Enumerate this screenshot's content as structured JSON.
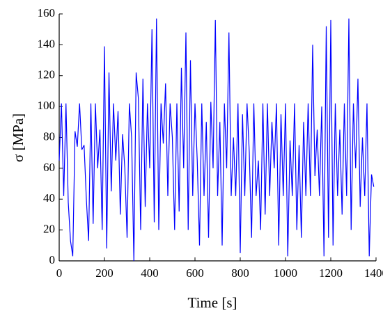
{
  "chart_data": {
    "type": "line",
    "x_label": "Time [s]",
    "y_label": "σ [MPa]",
    "x": [
      0,
      10,
      20,
      30,
      40,
      50,
      60,
      70,
      80,
      90,
      100,
      110,
      120,
      130,
      140,
      150,
      160,
      170,
      180,
      190,
      200,
      210,
      220,
      230,
      240,
      250,
      260,
      270,
      280,
      290,
      300,
      310,
      320,
      330,
      340,
      350,
      360,
      370,
      380,
      390,
      400,
      410,
      420,
      430,
      440,
      450,
      460,
      470,
      480,
      490,
      500,
      510,
      520,
      530,
      540,
      550,
      560,
      570,
      580,
      590,
      600,
      610,
      620,
      630,
      640,
      650,
      660,
      670,
      680,
      690,
      700,
      710,
      720,
      730,
      740,
      750,
      760,
      770,
      780,
      790,
      800,
      810,
      820,
      830,
      840,
      850,
      860,
      870,
      880,
      890,
      900,
      910,
      920,
      930,
      940,
      950,
      960,
      970,
      980,
      990,
      1000,
      1010,
      1020,
      1030,
      1040,
      1050,
      1060,
      1070,
      1080,
      1090,
      1100,
      1110,
      1120,
      1130,
      1140,
      1150,
      1160,
      1170,
      1180,
      1190,
      1200,
      1210,
      1220,
      1230,
      1240,
      1250,
      1260,
      1270,
      1280,
      1290,
      1300,
      1310,
      1320,
      1330,
      1340,
      1350,
      1360,
      1370,
      1380,
      1390
    ],
    "series": [
      {
        "color": "#0000ff",
        "values": [
          65,
          102,
          42,
          102,
          38,
          13,
          3,
          84,
          74,
          102,
          72,
          75,
          40,
          13,
          102,
          24,
          102,
          60,
          85,
          20,
          139,
          8,
          122,
          45,
          102,
          65,
          97,
          30,
          82,
          60,
          15,
          102,
          80,
          0,
          122,
          105,
          20,
          118,
          35,
          102,
          60,
          150,
          25,
          157,
          20,
          102,
          76,
          115,
          42,
          102,
          80,
          20,
          102,
          32,
          125,
          60,
          148,
          20,
          130,
          42,
          102,
          65,
          10,
          102,
          42,
          90,
          15,
          103,
          60,
          156,
          42,
          90,
          10,
          102,
          60,
          148,
          42,
          80,
          42,
          102,
          5,
          95,
          42,
          102,
          70,
          15,
          102,
          42,
          65,
          20,
          102,
          30,
          102,
          42,
          90,
          60,
          102,
          10,
          95,
          42,
          102,
          3,
          78,
          42,
          102,
          20,
          75,
          15,
          90,
          42,
          102,
          42,
          140,
          55,
          85,
          42,
          100,
          3,
          152,
          15,
          156,
          10,
          102,
          42,
          85,
          30,
          102,
          42,
          157,
          20,
          102,
          60,
          118,
          35,
          80,
          42,
          102,
          3,
          56,
          48
        ]
      }
    ],
    "xlim": [
      0,
      1400
    ],
    "xticks": [
      0,
      200,
      400,
      600,
      800,
      1000,
      1200,
      1400
    ],
    "ylim": [
      0,
      160
    ],
    "yticks": [
      0,
      20,
      40,
      60,
      80,
      100,
      120,
      140,
      160
    ],
    "grid": false
  }
}
